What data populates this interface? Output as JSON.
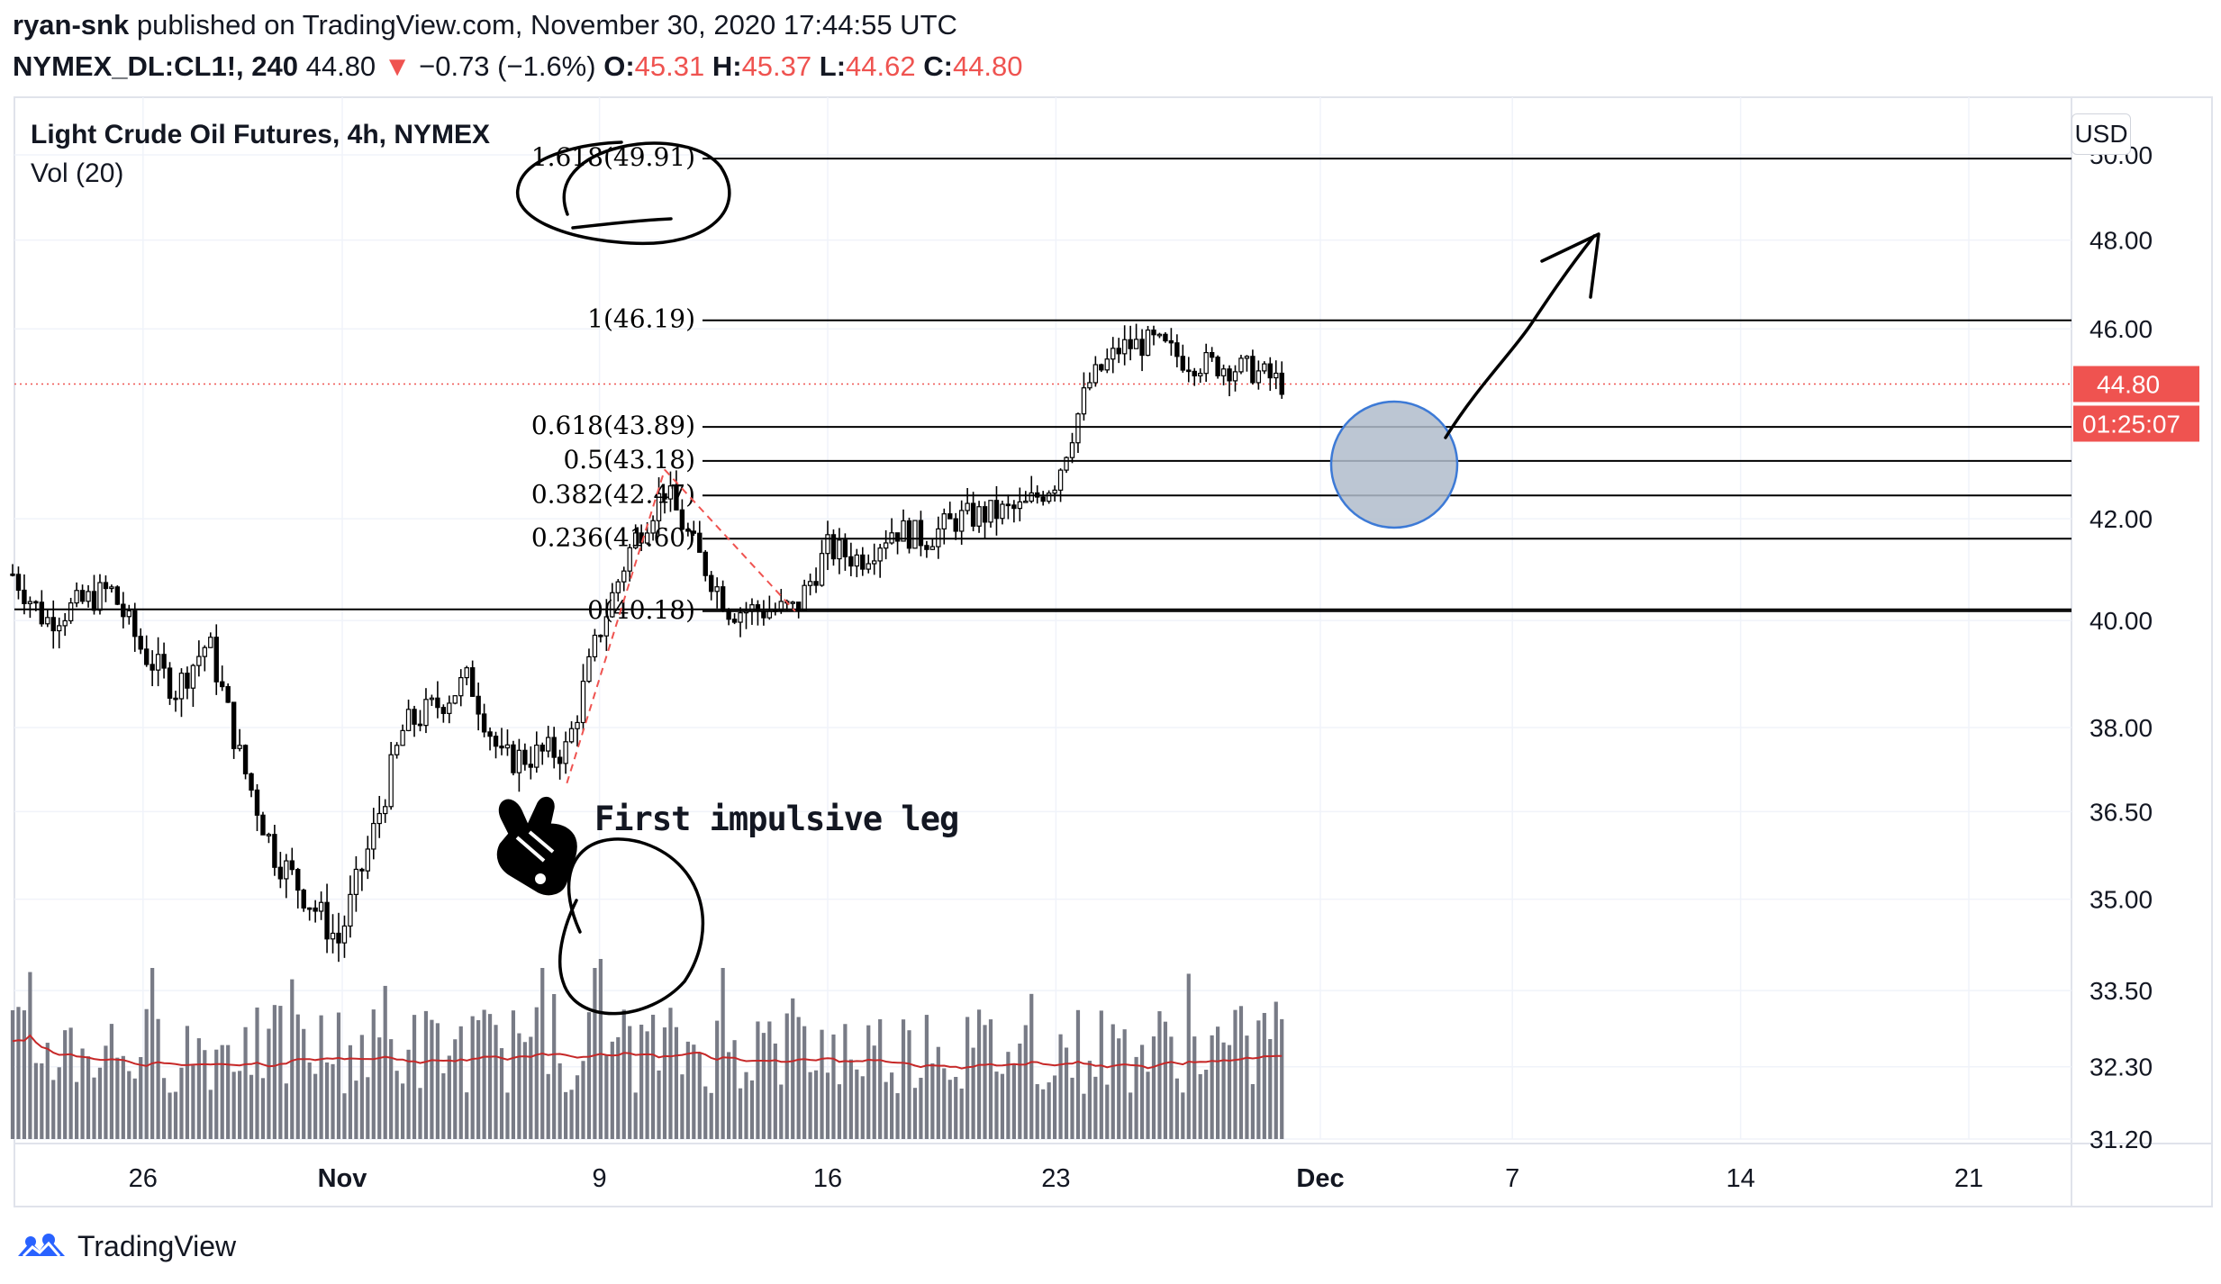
{
  "header": {
    "author": "ryan-snk",
    "published_text": "published on TradingView.com, November 30, 2020 17:44:55 UTC",
    "symbol": "NYMEX_DL:CL1!, 240",
    "last": "44.80",
    "change_arrow": "▼",
    "change": "−0.73 (−1.6%)",
    "o_label": "O:",
    "o_value": "45.31",
    "h_label": "H:",
    "h_value": "45.37",
    "l_label": "L:",
    "l_value": "44.62",
    "c_label": "C:",
    "c_value": "44.80"
  },
  "legend": {
    "title": "Light Crude Oil Futures, 4h, NYMEX",
    "indicator": "Vol (20)"
  },
  "axis": {
    "currency_button": "USD",
    "price_tag": "44.80",
    "countdown_tag": "01:25:07"
  },
  "annotation": {
    "text": "First impulsive leg"
  },
  "footer": {
    "brand": "TradingView"
  },
  "colors": {
    "down": "#ef5350",
    "candle": "#000000",
    "volume": "#787b86",
    "vol_ma": "#c62828",
    "highlight_fill": "#b0bccb",
    "highlight_stroke": "#3d7ad6",
    "tag": "#ef5350"
  },
  "chart_data": {
    "type": "candlestick",
    "title": "Light Crude Oil Futures, 4h, NYMEX",
    "y_ticks": [
      "50.00",
      "48.00",
      "46.00",
      "44.80",
      "42.00",
      "40.00",
      "38.00",
      "36.50",
      "35.00",
      "33.50",
      "32.30",
      "31.20"
    ],
    "y_scale": "log",
    "ylim": [
      31.2,
      51.4
    ],
    "x_ticks": [
      "26",
      "Nov",
      "9",
      "16",
      "23",
      "Dec",
      "7",
      "14",
      "21"
    ],
    "fib_levels": [
      {
        "label": "1.618(49.91)",
        "value": 49.91
      },
      {
        "label": "1(46.19)",
        "value": 46.19
      },
      {
        "label": "0.618(43.89)",
        "value": 43.89
      },
      {
        "label": "0.5(43.18)",
        "value": 43.18
      },
      {
        "label": "0.382(42.47)",
        "value": 42.47
      },
      {
        "label": "0.236(41.60)",
        "value": 41.6
      },
      {
        "label": "0(40.18)",
        "value": 40.18
      }
    ],
    "horizontal_line": 40.18,
    "last_price": 44.8,
    "price_path": [
      {
        "t": "Oct 22",
        "v": 40.9
      },
      {
        "t": "Oct 23",
        "v": 40.0
      },
      {
        "t": "Oct 25",
        "v": 40.6
      },
      {
        "t": "Oct 26",
        "v": 39.4
      },
      {
        "t": "Oct 27",
        "v": 38.7
      },
      {
        "t": "Oct 28",
        "v": 39.6
      },
      {
        "t": "Oct 29",
        "v": 37.4
      },
      {
        "t": "Oct 30",
        "v": 35.8
      },
      {
        "t": "Nov 1",
        "v": 34.3
      },
      {
        "t": "Nov 2",
        "v": 36.0
      },
      {
        "t": "Nov 3",
        "v": 38.0
      },
      {
        "t": "Nov 4",
        "v": 38.4
      },
      {
        "t": "Nov 5",
        "v": 38.9
      },
      {
        "t": "Nov 6",
        "v": 37.4
      },
      {
        "t": "Nov 8",
        "v": 37.6
      },
      {
        "t": "Nov 9",
        "v": 39.8
      },
      {
        "t": "Nov 10",
        "v": 41.5
      },
      {
        "t": "Nov 11",
        "v": 42.6
      },
      {
        "t": "Nov 12",
        "v": 41.3
      },
      {
        "t": "Nov 13",
        "v": 40.2
      },
      {
        "t": "Nov 15",
        "v": 40.2
      },
      {
        "t": "Nov 16",
        "v": 41.4
      },
      {
        "t": "Nov 17",
        "v": 41.2
      },
      {
        "t": "Nov 18",
        "v": 41.8
      },
      {
        "t": "Nov 19",
        "v": 41.6
      },
      {
        "t": "Nov 20",
        "v": 42.0
      },
      {
        "t": "Nov 22",
        "v": 42.2
      },
      {
        "t": "Nov 23",
        "v": 42.8
      },
      {
        "t": "Nov 24",
        "v": 44.8
      },
      {
        "t": "Nov 25",
        "v": 45.6
      },
      {
        "t": "Nov 26",
        "v": 45.7
      },
      {
        "t": "Nov 27",
        "v": 45.3
      },
      {
        "t": "Nov 29",
        "v": 45.1
      },
      {
        "t": "Nov 30",
        "v": 44.8
      }
    ]
  }
}
